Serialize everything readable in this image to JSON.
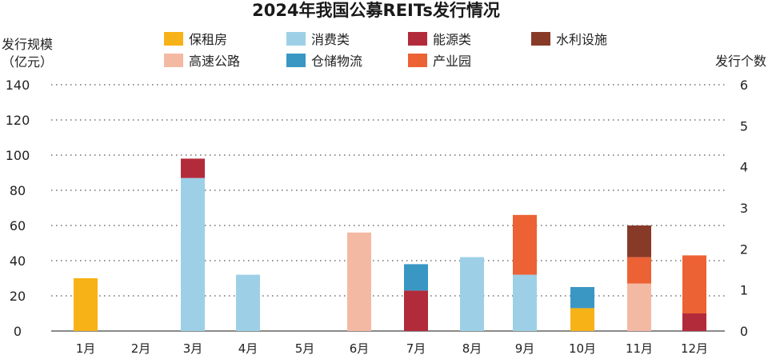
{
  "chart_data": {
    "type": "bar",
    "stacked": true,
    "title": "2024年我国公募REITs发行情况",
    "ylabel_left": [
      "发行规模",
      "（亿元）"
    ],
    "ylabel_right": "发行个数",
    "ylim_left": [
      0,
      140
    ],
    "ylim_right": [
      0,
      6
    ],
    "yticks_left": [
      0,
      20,
      40,
      60,
      80,
      100,
      120,
      140
    ],
    "yticks_right": [
      0,
      1,
      2,
      3,
      4,
      5,
      6
    ],
    "grid": true,
    "legend_position": "top",
    "categories": [
      "1月",
      "2月",
      "3月",
      "4月",
      "5月",
      "6月",
      "7月",
      "8月",
      "9月",
      "10月",
      "11月",
      "12月"
    ],
    "series": [
      {
        "name": "保租房",
        "color": "#F7B217",
        "values": [
          30,
          0,
          0,
          0,
          0,
          0,
          0,
          0,
          0,
          13,
          0,
          0
        ]
      },
      {
        "name": "消费类",
        "color": "#9DD0E7",
        "values": [
          0,
          0,
          87,
          32,
          0,
          0,
          0,
          42,
          32,
          0,
          0,
          0
        ]
      },
      {
        "name": "高速公路",
        "color": "#F4B9A3",
        "values": [
          0,
          0,
          0,
          0,
          0,
          56,
          0,
          0,
          0,
          0,
          27,
          0
        ]
      },
      {
        "name": "能源类",
        "color": "#B22B3B",
        "values": [
          0,
          0,
          11,
          0,
          0,
          0,
          23,
          0,
          0,
          0,
          0,
          10
        ]
      },
      {
        "name": "仓储物流",
        "color": "#3A97C4",
        "values": [
          0,
          0,
          0,
          0,
          0,
          0,
          15,
          0,
          0,
          12,
          0,
          0
        ]
      },
      {
        "name": "产业园",
        "color": "#EC6234",
        "values": [
          0,
          0,
          0,
          0,
          0,
          0,
          0,
          0,
          34,
          0,
          15,
          33
        ]
      },
      {
        "name": "水利设施",
        "color": "#883A28",
        "values": [
          0,
          0,
          0,
          0,
          0,
          0,
          0,
          0,
          0,
          0,
          18,
          0
        ]
      }
    ],
    "stack_order": [
      [
        0
      ],
      [],
      [
        1,
        3,
        2
      ],
      [
        1
      ],
      [],
      [
        2
      ],
      [
        3,
        4
      ],
      [
        1
      ],
      [
        1,
        5
      ],
      [
        0,
        4
      ],
      [
        2,
        5,
        6
      ],
      [
        3,
        5
      ]
    ],
    "legend_order": [
      0,
      1,
      3,
      6,
      2,
      4,
      5
    ]
  }
}
